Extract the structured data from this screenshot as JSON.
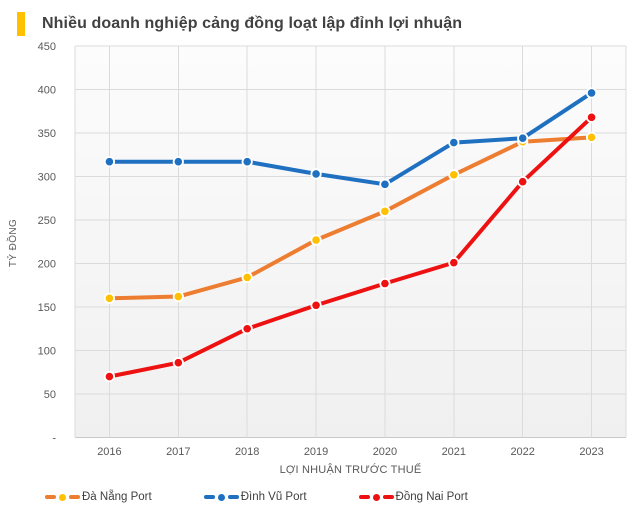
{
  "header": {
    "title": "Nhiều doanh nghiệp cảng đồng loạt lập đỉnh lợi nhuận",
    "accent_color": "#FFC000"
  },
  "chart_data": {
    "type": "line",
    "title": "Nhiều doanh nghiệp cảng đồng loạt lập đỉnh lợi nhuận",
    "xlabel": "LỢI NHUẬN TRƯỚC THUẾ",
    "ylabel": "TỶ ĐỒNG",
    "categories": [
      "2016",
      "2017",
      "2018",
      "2019",
      "2020",
      "2021",
      "2022",
      "2023"
    ],
    "ylim": [
      0,
      450
    ],
    "ytick_step": 50,
    "ytick_labels_ascending": [
      "-",
      "50",
      "100",
      "150",
      "200",
      "250",
      "300",
      "350",
      "400",
      "450"
    ],
    "grid": true,
    "legend_position": "bottom",
    "series": [
      {
        "name": "Đà Nẵng Port",
        "line_color": "#ED7D31",
        "marker_color": "#FFC000",
        "values": [
          160,
          162,
          184,
          227,
          260,
          302,
          340,
          345
        ]
      },
      {
        "name": "Đình Vũ Port",
        "line_color": "#1F70C1",
        "marker_color": "#1F70C1",
        "values": [
          317,
          317,
          317,
          303,
          291,
          339,
          344,
          396
        ]
      },
      {
        "name": "Đồng Nai Port",
        "line_color": "#EE1111",
        "marker_color": "#EE1111",
        "values": [
          70,
          86,
          125,
          152,
          177,
          201,
          294,
          368
        ]
      }
    ]
  },
  "style_colors": {
    "grid_line": "#DBDBDB",
    "axis_line": "#C9C9C9",
    "axis_text": "#595959",
    "title_text": "#414141",
    "legend_text": "#3F3F3F",
    "plot_bg_top": "#FCFCFC",
    "plot_bg_bottom": "#F0F0F0",
    "marker_ring": "#FFFFFF"
  }
}
